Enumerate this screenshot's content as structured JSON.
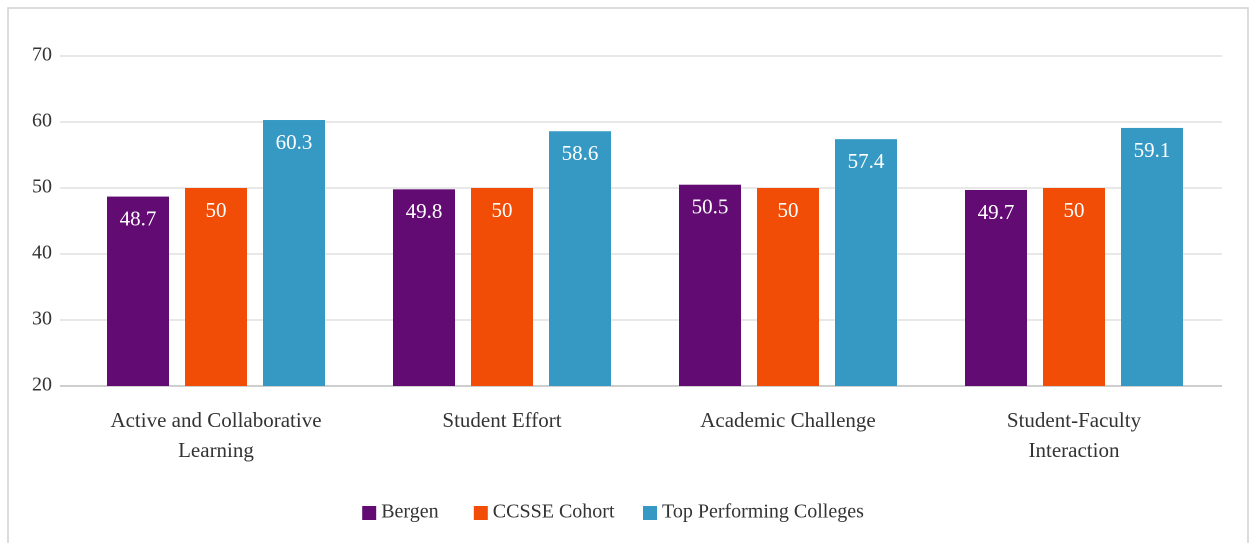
{
  "chart_data": {
    "type": "bar",
    "categories": [
      "Active and Collaborative Learning",
      "Student Effort",
      "Academic Challenge",
      "Student-Faculty Interaction"
    ],
    "series": [
      {
        "name": "Bergen",
        "color": "#620c73",
        "values": [
          48.7,
          49.8,
          50.5,
          49.7
        ]
      },
      {
        "name": "CCSSE Cohort",
        "color": "#f24d06",
        "values": [
          50,
          50,
          50,
          50
        ]
      },
      {
        "name": "Top Performing Colleges",
        "color": "#3599c4",
        "values": [
          60.3,
          58.6,
          57.4,
          59.1
        ]
      }
    ],
    "ylim": [
      20,
      70
    ],
    "yticks": [
      20,
      30,
      40,
      50,
      60,
      70
    ],
    "grid": true,
    "legend": "bottom"
  }
}
